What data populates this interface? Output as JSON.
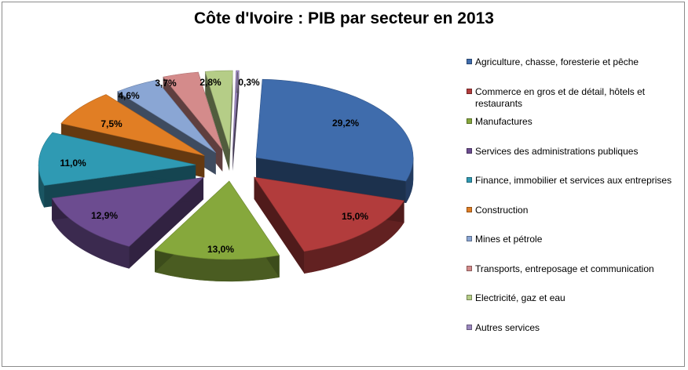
{
  "chart_data": {
    "type": "pie",
    "title": "Côte d'Ivoire : PIB par secteur en 2013",
    "legend_position": "right",
    "slices": [
      {
        "label": "Agriculture, chasse, foresterie et pêche",
        "value": 29.2,
        "value_label": "29,2%",
        "color": "#3f6cac"
      },
      {
        "label": "Commerce en gros et de détail, hôtels et restaurants",
        "value": 15.0,
        "value_label": "15,0%",
        "color": "#b23c3c"
      },
      {
        "label": "Manufactures",
        "value": 13.0,
        "value_label": "13,0%",
        "color": "#86a83c"
      },
      {
        "label": "Services des administrations publiques",
        "value": 12.9,
        "value_label": "12,9%",
        "color": "#6c4c90"
      },
      {
        "label": "Finance, immobilier et services aux entreprises",
        "value": 11.0,
        "value_label": "11,0%",
        "color": "#2f9ab3"
      },
      {
        "label": "Construction",
        "value": 7.5,
        "value_label": "7,5%",
        "color": "#e17e24"
      },
      {
        "label": "Mines et pétrole",
        "value": 4.6,
        "value_label": "4,6%",
        "color": "#8aa6d4"
      },
      {
        "label": "Transports, entreposage et communication",
        "value": 3.7,
        "value_label": "3,7%",
        "color": "#d48b8b"
      },
      {
        "label": "Electricité, gaz et eau",
        "value": 2.8,
        "value_label": "2,8%",
        "color": "#b5cd87"
      },
      {
        "label": "Autres services",
        "value": 0.3,
        "value_label": "0,3%",
        "color": "#9c88bf"
      }
    ]
  }
}
